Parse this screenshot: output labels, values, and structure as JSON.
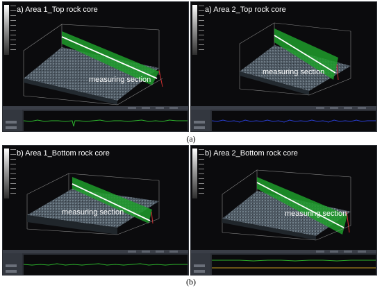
{
  "panels": [
    {
      "title": "a)  Area 1_Top rock core",
      "measure_label": "measuring section"
    },
    {
      "title": "a)  Area 2_Top rock core",
      "measure_label": "measuring section"
    },
    {
      "title": "b)  Area 1_Bottom rock core",
      "measure_label": "measuring section"
    },
    {
      "title": "b)  Area 2_Bottom rock core",
      "measure_label": "measuring section"
    }
  ],
  "captions": {
    "top": "(a)",
    "bottom": "(b)"
  },
  "colors": {
    "profile_top_left": "#2db82d",
    "profile_top_right": "#2a3fd6",
    "profile_bottom_left": "#2db82d",
    "profile_bottom_right": "#2db82d",
    "section_plane": "#1e9e2a",
    "surface": "#4f5a63"
  }
}
